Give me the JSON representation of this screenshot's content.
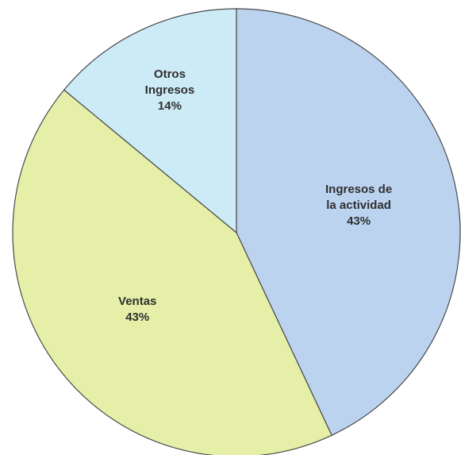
{
  "chart_data": {
    "type": "pie",
    "categories": [
      "Ingresos de la actividad",
      "Ventas",
      "Otros Ingresos"
    ],
    "values": [
      43,
      43,
      14
    ],
    "value_labels": [
      "43%",
      "43%",
      "14%"
    ],
    "colors": [
      "#bcd3f0",
      "#e5efa8",
      "#cdebf7"
    ]
  }
}
